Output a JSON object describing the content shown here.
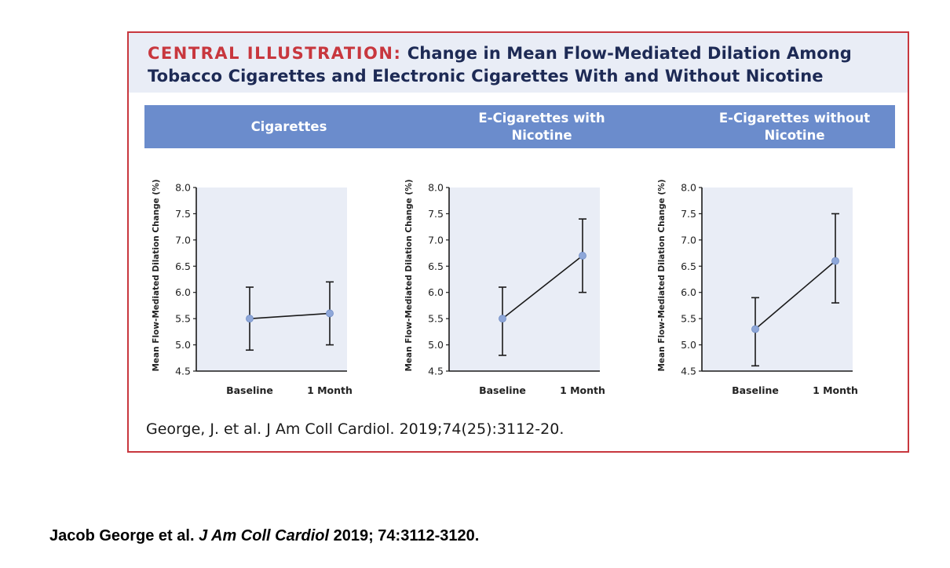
{
  "header": {
    "title_lead": "CENTRAL ILLUSTRATION:",
    "title_line1": "Change in Mean Flow-Mediated Dilation Among",
    "title_line2": "Tobacco Cigarettes and Electronic Cigarettes With and Without Nicotine"
  },
  "panels": [
    {
      "label": "Cigarettes"
    },
    {
      "label_line1": "E-Cigarettes with",
      "label_line2": "Nicotine"
    },
    {
      "label_line1": "E-Cigarettes without",
      "label_line2": "Nicotine"
    }
  ],
  "citation": "George, J. et al. J Am Coll Cardiol. 2019;74(25):3112-20.",
  "footer": {
    "authors": "Jacob George et al.",
    "journal": "J Am Coll Cardiol",
    "details": "2019; 74:3112-3120."
  },
  "colors": {
    "title_red": "#c8373e",
    "title_navy": "#1d2a55",
    "panel_bar": "#6b8ccc",
    "plot_bg": "#e9edf6",
    "marker": "#8ea7d9",
    "line": "#1a1a1a"
  },
  "chart_data": [
    {
      "type": "line",
      "title": "Cigarettes",
      "categories": [
        "Baseline",
        "1 Month"
      ],
      "values": [
        5.5,
        5.6
      ],
      "error_low": [
        4.9,
        5.0
      ],
      "error_high": [
        6.1,
        6.2
      ],
      "ylabel": "Mean Flow-Mediated Dilation Change (%)",
      "xlabel": "",
      "ylim": [
        4.5,
        8.0
      ],
      "yticks": [
        "4.5",
        "5.0",
        "5.5",
        "6.0",
        "6.5",
        "7.0",
        "7.5",
        "8.0"
      ]
    },
    {
      "type": "line",
      "title": "E-Cigarettes with Nicotine",
      "categories": [
        "Baseline",
        "1 Month"
      ],
      "values": [
        5.5,
        6.7
      ],
      "error_low": [
        4.8,
        6.0
      ],
      "error_high": [
        6.1,
        7.4
      ],
      "ylabel": "Mean Flow-Mediated Dilation Change (%)",
      "xlabel": "",
      "ylim": [
        4.5,
        8.0
      ],
      "yticks": [
        "4.5",
        "5.0",
        "5.5",
        "6.0",
        "6.5",
        "7.0",
        "7.5",
        "8.0"
      ]
    },
    {
      "type": "line",
      "title": "E-Cigarettes without Nicotine",
      "categories": [
        "Baseline",
        "1 Month"
      ],
      "values": [
        5.3,
        6.6
      ],
      "error_low": [
        4.6,
        5.8
      ],
      "error_high": [
        5.9,
        7.5
      ],
      "ylabel": "Mean Flow-Mediated Dilation Change (%)",
      "xlabel": "",
      "ylim": [
        4.5,
        8.0
      ],
      "yticks": [
        "4.5",
        "5.0",
        "5.5",
        "6.0",
        "6.5",
        "7.0",
        "7.5",
        "8.0"
      ]
    }
  ]
}
